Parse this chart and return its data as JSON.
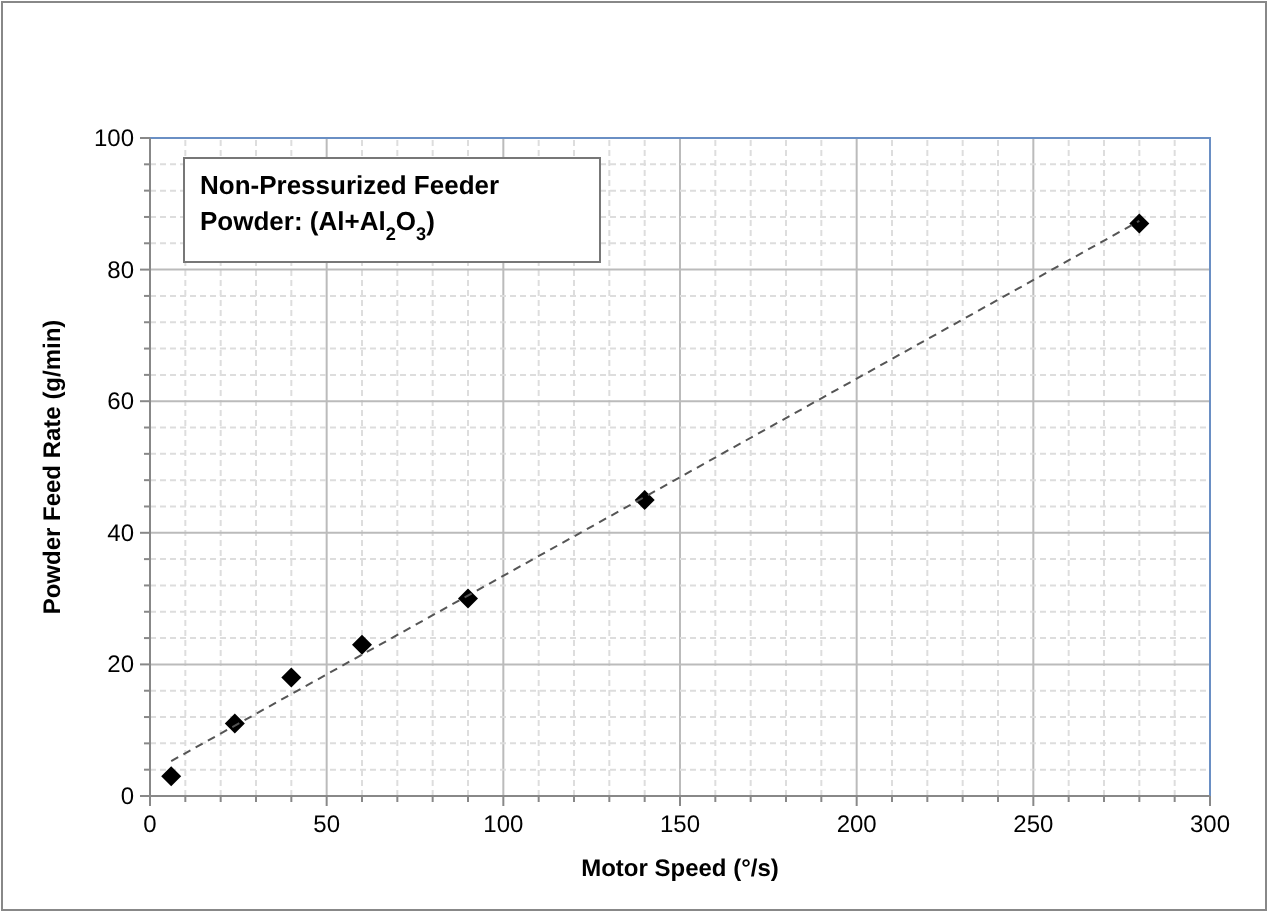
{
  "chart_data": {
    "type": "scatter",
    "xlabel": "Motor Speed (°/s)",
    "ylabel": "Powder Feed Rate (g/min)",
    "annotations": [
      "Non-Pressurized Feeder",
      "Powder: (Al+Al$_{2}$O$_{3}$)"
    ],
    "xlim": [
      0,
      300
    ],
    "ylim": [
      0,
      100
    ],
    "xticks": [
      0,
      {
        "value": 10,
        "label": null
      },
      {
        "value": 20,
        "label": null
      },
      {
        "value": 30,
        "label": null
      },
      {
        "value": 40,
        "label": null
      },
      50,
      {
        "value": 60,
        "label": null
      },
      {
        "value": 70,
        "label": null
      },
      {
        "value": 80,
        "label": null
      },
      {
        "value": 90,
        "label": null
      },
      100,
      {
        "value": 110,
        "label": null
      },
      {
        "value": 120,
        "label": null
      },
      {
        "value": 130,
        "label": null
      },
      {
        "value": 140,
        "label": null
      },
      150,
      {
        "value": 160,
        "label": null
      },
      {
        "value": 170,
        "label": null
      },
      {
        "value": 180,
        "label": null
      },
      {
        "value": 190,
        "label": null
      },
      200,
      {
        "value": 210,
        "label": null
      },
      {
        "value": 220,
        "label": null
      },
      {
        "value": 230,
        "label": null
      },
      {
        "value": 240,
        "label": null
      },
      250,
      {
        "value": 260,
        "label": null
      },
      {
        "value": 270,
        "label": null
      },
      {
        "value": 280,
        "label": null
      },
      {
        "value": 290,
        "label": null
      },
      300
    ],
    "yticks": [
      0,
      {
        "value": 4,
        "label": null
      },
      {
        "value": 8,
        "label": null
      },
      {
        "value": 12,
        "label": null
      },
      {
        "value": 16,
        "label": null
      },
      20,
      {
        "value": 24,
        "label": null
      },
      {
        "value": 28,
        "label": null
      },
      {
        "value": 32,
        "label": null
      },
      {
        "value": 36,
        "label": null
      },
      40,
      {
        "value": 44,
        "label": null
      },
      {
        "value": 48,
        "label": null
      },
      {
        "value": 52,
        "label": null
      },
      {
        "value": 56,
        "label": null
      },
      60,
      {
        "value": 64,
        "label": null
      },
      {
        "value": 68,
        "label": null
      },
      {
        "value": 72,
        "label": null
      },
      {
        "value": 76,
        "label": null
      },
      80,
      {
        "value": 84,
        "label": null
      },
      {
        "value": 88,
        "label": null
      },
      {
        "value": 92,
        "label": null
      },
      {
        "value": 96,
        "label": null
      },
      100
    ],
    "grid": true,
    "marker": "diamond",
    "series": [
      {
        "color": "#000000",
        "x": [
          6,
          24,
          40,
          60,
          90,
          140,
          280
        ],
        "values": [
          3,
          11,
          18,
          23,
          30,
          45,
          87
        ]
      },
      {
        "type": "line",
        "color": "#555555",
        "line_style": "dashed",
        "marker": "none",
        "x": [
          6,
          280
        ],
        "values": [
          5.3,
          87.4
        ]
      }
    ]
  }
}
